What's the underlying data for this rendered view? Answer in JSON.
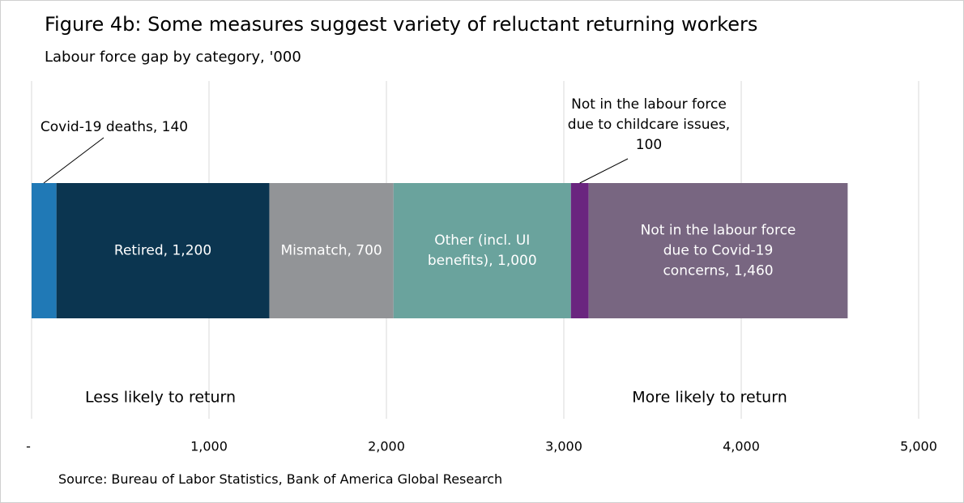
{
  "title": "Figure 4b: Some measures suggest variety of reluctant returning workers",
  "subtitle": "Labour force gap by category, '000",
  "source": "Source: Bureau of Labor Statistics, Bank of America Global Research",
  "chart_data": {
    "type": "bar",
    "orientation": "horizontal",
    "stacked": true,
    "xlim": [
      0,
      5000
    ],
    "x_ticks": [
      0,
      1000,
      2000,
      3000,
      4000,
      5000
    ],
    "x_tick_labels": [
      "-",
      "1,000",
      "2,000",
      "3,000",
      "4,000",
      "5,000"
    ],
    "grid": "vertical",
    "segments": [
      {
        "value": 140,
        "label": "Covid-19 deaths, 140",
        "color": "#2079b6",
        "callout": true
      },
      {
        "value": 1200,
        "label": "Retired, 1,200",
        "color": "#0b3550",
        "text_color": "#ffffff"
      },
      {
        "value": 700,
        "label": "Mismatch,  700",
        "color": "#929497",
        "text_color": "#ffffff"
      },
      {
        "value": 1000,
        "label": "Other (incl. UI benefits),  1,000",
        "color": "#6aa39d",
        "text_color": "#ffffff"
      },
      {
        "value": 100,
        "label": "Not in the labour force due to childcare issues, 100",
        "color": "#6a257f",
        "callout": true
      },
      {
        "value": 1460,
        "label": "Not in the labour force due to Covid-19 concerns, 1,460",
        "color": "#786681",
        "text_color": "#ffffff"
      }
    ],
    "annotations": {
      "left": "Less likely to return",
      "right": "More likely to return"
    }
  }
}
